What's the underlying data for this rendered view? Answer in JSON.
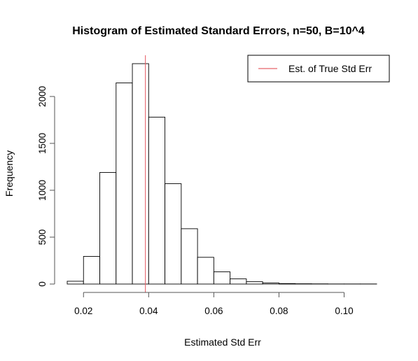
{
  "chart_data": {
    "type": "bar",
    "title": "Histogram of Estimated Standard Errors, n=50, B=10^4",
    "xlabel": "Estimated Std Err",
    "ylabel": "Frequency",
    "xlim": [
      0.015,
      0.11
    ],
    "ylim": [
      0,
      2350
    ],
    "x_ticks": [
      0.02,
      0.04,
      0.06,
      0.08,
      0.1
    ],
    "x_tick_labels": [
      "0.02",
      "0.04",
      "0.06",
      "0.08",
      "0.10"
    ],
    "y_ticks": [
      0,
      500,
      1000,
      1500,
      2000
    ],
    "y_tick_labels": [
      "0",
      "500",
      "1000",
      "1500",
      "2000"
    ],
    "bin_edges": [
      0.015,
      0.02,
      0.025,
      0.03,
      0.035,
      0.04,
      0.045,
      0.05,
      0.055,
      0.06,
      0.065,
      0.07,
      0.075,
      0.08,
      0.085,
      0.09,
      0.095,
      0.1,
      0.105,
      0.11
    ],
    "values": [
      30,
      295,
      1190,
      2145,
      2350,
      1780,
      1070,
      590,
      285,
      130,
      55,
      25,
      12,
      5,
      3,
      2,
      1,
      1,
      1
    ],
    "bar_fill": "#ffffff",
    "bar_stroke": "#000000",
    "reference_line": {
      "x": 0.039,
      "color": "#e8636b",
      "label": "Est. of True Std Err"
    },
    "legend_position": "top-right",
    "grid": false
  }
}
